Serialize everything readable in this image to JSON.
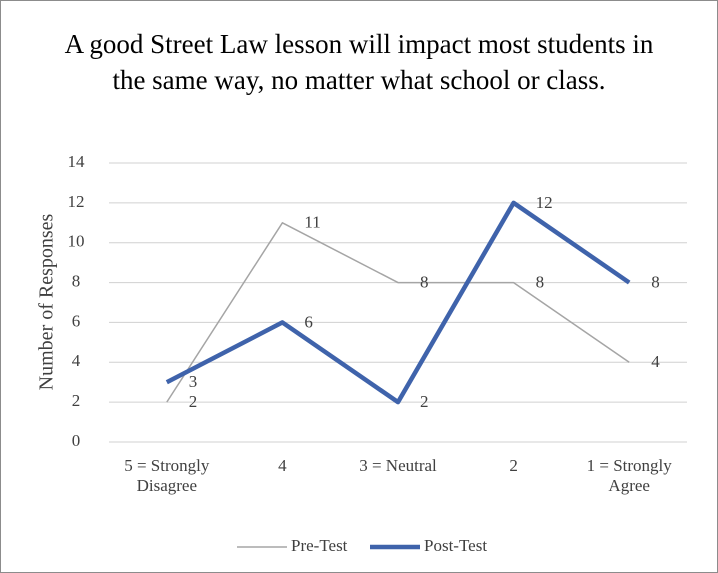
{
  "chart_data": {
    "type": "line",
    "title": "A good Street Law lesson will impact most students in the same way, no matter what school or class.",
    "ylabel": "Number of Responses",
    "categories": [
      "5 = Strongly Disagree",
      "4",
      "3  = Neutral",
      "2",
      "1 = Strongly Agree"
    ],
    "series": [
      {
        "name": "Pre-Test",
        "color": "#a5a5a5",
        "values": [
          2,
          11,
          8,
          8,
          4
        ]
      },
      {
        "name": "Post-Test",
        "color": "#3f63ab",
        "values": [
          3,
          6,
          2,
          12,
          8
        ]
      }
    ],
    "ylim": [
      0,
      14
    ],
    "yticks": [
      0,
      2,
      4,
      6,
      8,
      10,
      12,
      14
    ],
    "grid": true,
    "legend": "bottom"
  }
}
